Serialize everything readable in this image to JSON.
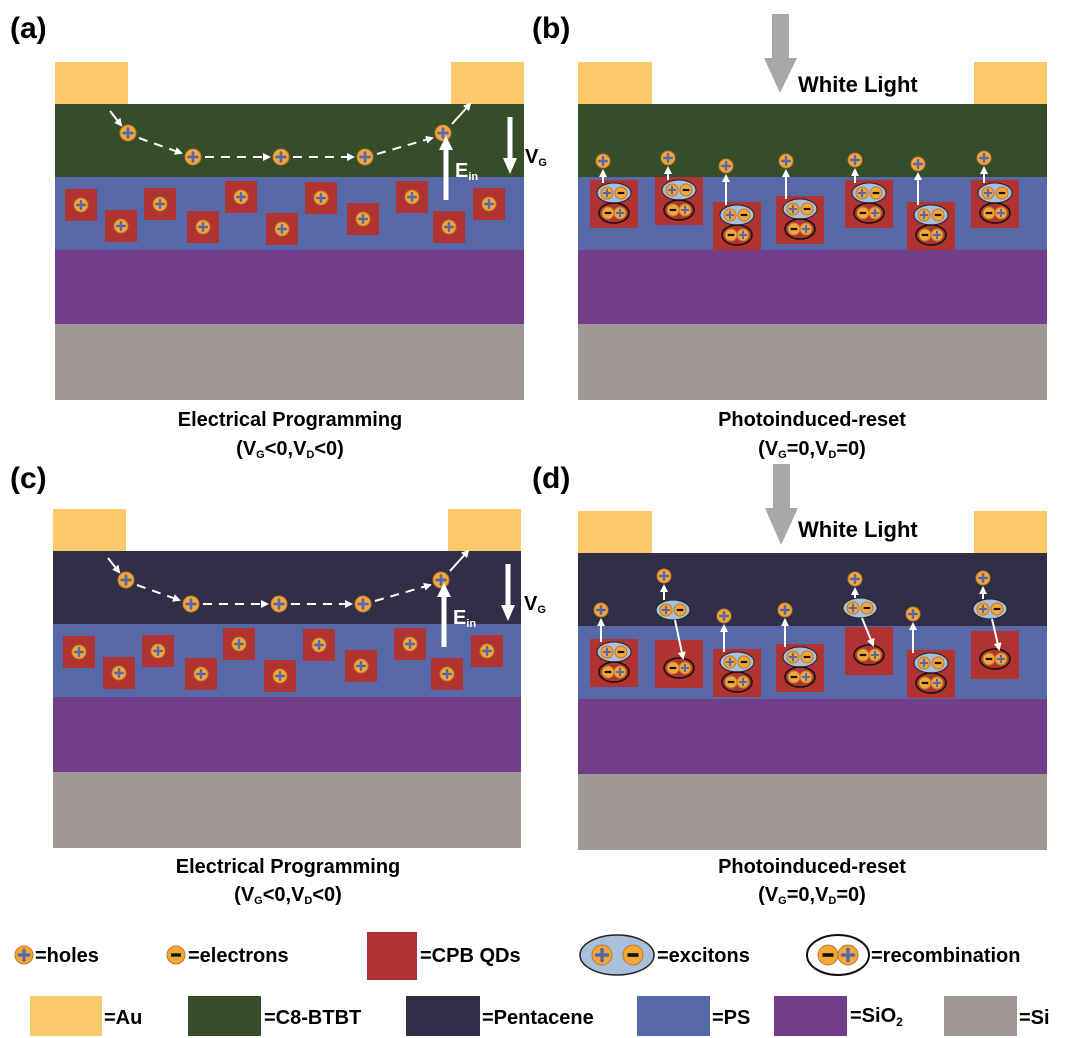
{
  "panels": [
    {
      "id": "a",
      "label": "(a)",
      "caption": "Electrical Programming",
      "v_g": "V",
      "v_g_sub": "G",
      "v_g_op": "<0,",
      "v_d": "V",
      "v_d_sub": "D",
      "v_d_op": "<0)",
      "gate_label": "V",
      "gate_label_sub": "G",
      "field_label": "E",
      "field_label_sub": "in",
      "semiconductor": "C8-BTBT"
    },
    {
      "id": "b",
      "label": "(b)",
      "caption": "Photoinduced-reset",
      "v_g": "V",
      "v_g_sub": "G",
      "v_g_op": "=0,",
      "v_d": "V",
      "v_d_sub": "D",
      "v_d_op": "=0)",
      "light_label": "White Light",
      "semiconductor": "C8-BTBT"
    },
    {
      "id": "c",
      "label": "(c)",
      "caption": "Electrical Programming",
      "v_g": "V",
      "v_g_sub": "G",
      "v_g_op": "<0,",
      "v_d": "V",
      "v_d_sub": "D",
      "v_d_op": "<0)",
      "gate_label": "V",
      "gate_label_sub": "G",
      "field_label": "E",
      "field_label_sub": "in",
      "semiconductor": "Pentacene"
    },
    {
      "id": "d",
      "label": "(d)",
      "caption": "Photoinduced-reset",
      "v_g": "V",
      "v_g_sub": "G",
      "v_g_op": "=0,",
      "v_d": "V",
      "v_d_sub": "D",
      "v_d_op": "=0)",
      "light_label": "White Light",
      "semiconductor": "Pentacene"
    }
  ],
  "legend_symbols": [
    {
      "key": "holes",
      "text": "=holes"
    },
    {
      "key": "electrons",
      "text": "=electrons"
    },
    {
      "key": "qds",
      "text": "=CPB QDs"
    },
    {
      "key": "excitons",
      "text": "=excitons"
    },
    {
      "key": "recombination",
      "text": "=recombination"
    }
  ],
  "legend_layers": [
    {
      "key": "au",
      "text": "=Au",
      "color": "#fcc96b"
    },
    {
      "key": "c8btbt",
      "text": "=C8-BTBT",
      "color": "#364d2a"
    },
    {
      "key": "pentacene",
      "text": "=Pentacene",
      "color": "#312f48"
    },
    {
      "key": "ps",
      "text": "=PS",
      "color": "#5668a7"
    },
    {
      "key": "sio2",
      "text": "=SiO",
      "text_sub": "2",
      "color": "#733e89"
    },
    {
      "key": "si",
      "text": "=Si",
      "color": "#a09897"
    }
  ],
  "colors": {
    "au": "#fcc96b",
    "c8btbt": "#364d2a",
    "pentacene": "#312f48",
    "ps": "#5668a7",
    "sio2": "#733e89",
    "si": "#a09897",
    "qd": "#b03331",
    "particle": "#f3a73a",
    "exciton": "#a8c0dc",
    "arrow_light": "#a8a8a8"
  }
}
